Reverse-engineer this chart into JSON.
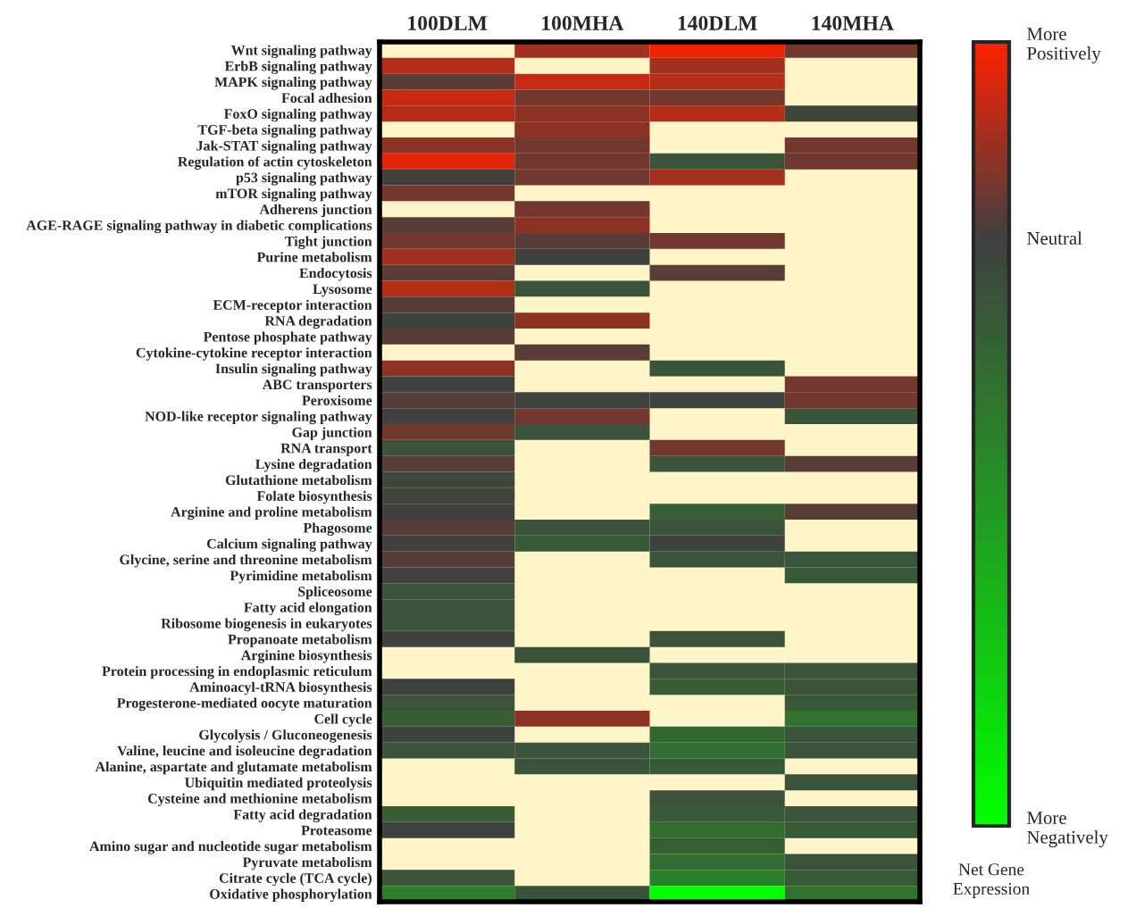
{
  "chart_data": {
    "type": "heatmap",
    "clabel": "Net Gene\nExpression",
    "categories": [
      "100DLM",
      "100MHA",
      "140DLM",
      "140MHA"
    ],
    "y_categories": [
      "Wnt signaling pathway",
      "ErbB signaling pathway",
      "MAPK signaling pathway",
      "Focal adhesion",
      "FoxO signaling pathway",
      "TGF-beta signaling pathway",
      "Jak-STAT signaling pathway",
      "Regulation of actin cytoskeleton",
      "p53 signaling pathway",
      "mTOR signaling pathway",
      "Adherens junction",
      "AGE-RAGE signaling pathway in diabetic complications",
      "Tight junction",
      "Purine metabolism",
      "Endocytosis",
      "Lysosome",
      "ECM-receptor interaction",
      "RNA degradation",
      "Pentose phosphate pathway",
      "Cytokine-cytokine receptor interaction",
      "Insulin signaling pathway",
      "ABC transporters",
      "Peroxisome",
      "NOD-like receptor signaling pathway",
      "Gap junction",
      "RNA transport",
      "Lysine degradation",
      "Glutathione metabolism",
      "Folate biosynthesis",
      "Arginine and proline metabolism",
      "Phagosome",
      "Calcium signaling pathway",
      "Glycine, serine and threonine metabolism",
      "Pyrimidine metabolism",
      "Spliceosome",
      "Fatty acid elongation",
      "Ribosome biogenesis in eukaryotes",
      "Propanoate metabolism",
      "Arginine biosynthesis",
      "Protein processing in endoplasmic reticulum",
      "Aminoacyl-tRNA biosynthesis",
      "Progesterone-mediated oocyte maturation",
      "Cell cycle",
      "Glycolysis / Gluconeogenesis",
      "Valine, leucine and isoleucine degradation",
      "Alanine, aspartate and glutamate metabolism",
      "Ubiquitin mediated proteolysis",
      "Cysteine and methionine metabolism",
      "Fatty acid degradation",
      "Proteasome",
      "Amino sugar and nucleotide sugar metabolism",
      "Pyruvate metabolism",
      "Citrate cycle (TCA cycle)",
      "Oxidative phosphorylation"
    ],
    "cells": [
      [
        null,
        0.5,
        0.9,
        0.25
      ],
      [
        0.6,
        null,
        0.5,
        null
      ],
      [
        0.12,
        0.7,
        0.6,
        null
      ],
      [
        0.7,
        0.25,
        0.25,
        null
      ],
      [
        0.6,
        0.4,
        0.6,
        -0.1
      ],
      [
        null,
        0.4,
        null,
        null
      ],
      [
        0.4,
        0.25,
        null,
        0.25
      ],
      [
        0.85,
        0.25,
        -0.3,
        0.25
      ],
      [
        0,
        0.25,
        0.5,
        null
      ],
      [
        0.25,
        null,
        null,
        null
      ],
      [
        null,
        0.25,
        null,
        null
      ],
      [
        0.12,
        0.4,
        null,
        null
      ],
      [
        0.25,
        0.12,
        0.25,
        null
      ],
      [
        0.5,
        -0.05,
        null,
        null
      ],
      [
        0.12,
        null,
        0.12,
        null
      ],
      [
        0.6,
        -0.3,
        null,
        null
      ],
      [
        0.12,
        null,
        null,
        null
      ],
      [
        -0.05,
        0.4,
        null,
        null
      ],
      [
        0.12,
        null,
        null,
        null
      ],
      [
        null,
        0.12,
        null,
        null
      ],
      [
        0.4,
        null,
        -0.3,
        null
      ],
      [
        -0.05,
        null,
        null,
        0.25
      ],
      [
        0.12,
        -0.05,
        -0.05,
        0.25
      ],
      [
        0,
        0.25,
        null,
        -0.3
      ],
      [
        0.25,
        -0.3,
        null,
        null
      ],
      [
        -0.3,
        null,
        0.25,
        null
      ],
      [
        0.12,
        null,
        -0.3,
        0.12
      ],
      [
        -0.1,
        null,
        null,
        null
      ],
      [
        -0.1,
        null,
        null,
        null
      ],
      [
        0,
        null,
        -0.5,
        0.12
      ],
      [
        0.12,
        -0.3,
        -0.3,
        null
      ],
      [
        0,
        -0.4,
        -0.05,
        null
      ],
      [
        0.12,
        null,
        -0.3,
        -0.3
      ],
      [
        0,
        null,
        null,
        -0.4
      ],
      [
        -0.3,
        null,
        null,
        null
      ],
      [
        -0.3,
        null,
        null,
        null
      ],
      [
        -0.3,
        null,
        null,
        null
      ],
      [
        -0.05,
        null,
        -0.3,
        null
      ],
      [
        null,
        -0.3,
        null,
        null
      ],
      [
        null,
        null,
        -0.3,
        -0.3
      ],
      [
        -0.05,
        null,
        -0.5,
        -0.3
      ],
      [
        -0.3,
        null,
        null,
        -0.4
      ],
      [
        -0.5,
        0.4,
        null,
        -0.8
      ],
      [
        -0.05,
        null,
        -0.6,
        -0.3
      ],
      [
        -0.3,
        -0.3,
        -0.7,
        -0.3
      ],
      [
        null,
        -0.3,
        -0.4,
        null
      ],
      [
        null,
        null,
        null,
        -0.3
      ],
      [
        null,
        null,
        -0.3,
        null
      ],
      [
        -0.5,
        null,
        -0.4,
        -0.3
      ],
      [
        -0.05,
        null,
        -0.7,
        -0.4
      ],
      [
        null,
        null,
        -0.5,
        null
      ],
      [
        null,
        null,
        -0.7,
        -0.3
      ],
      [
        -0.3,
        null,
        -1.0,
        -0.4
      ],
      [
        -1.0,
        -0.3,
        -3,
        -0.8
      ]
    ],
    "clim": [
      -3,
      1
    ],
    "cticks": [
      {
        "value": 1,
        "label": "More\nPositively"
      },
      {
        "value": 0,
        "label": "Neutral"
      },
      {
        "value": -3,
        "label": "More\nNegatively"
      }
    ]
  }
}
